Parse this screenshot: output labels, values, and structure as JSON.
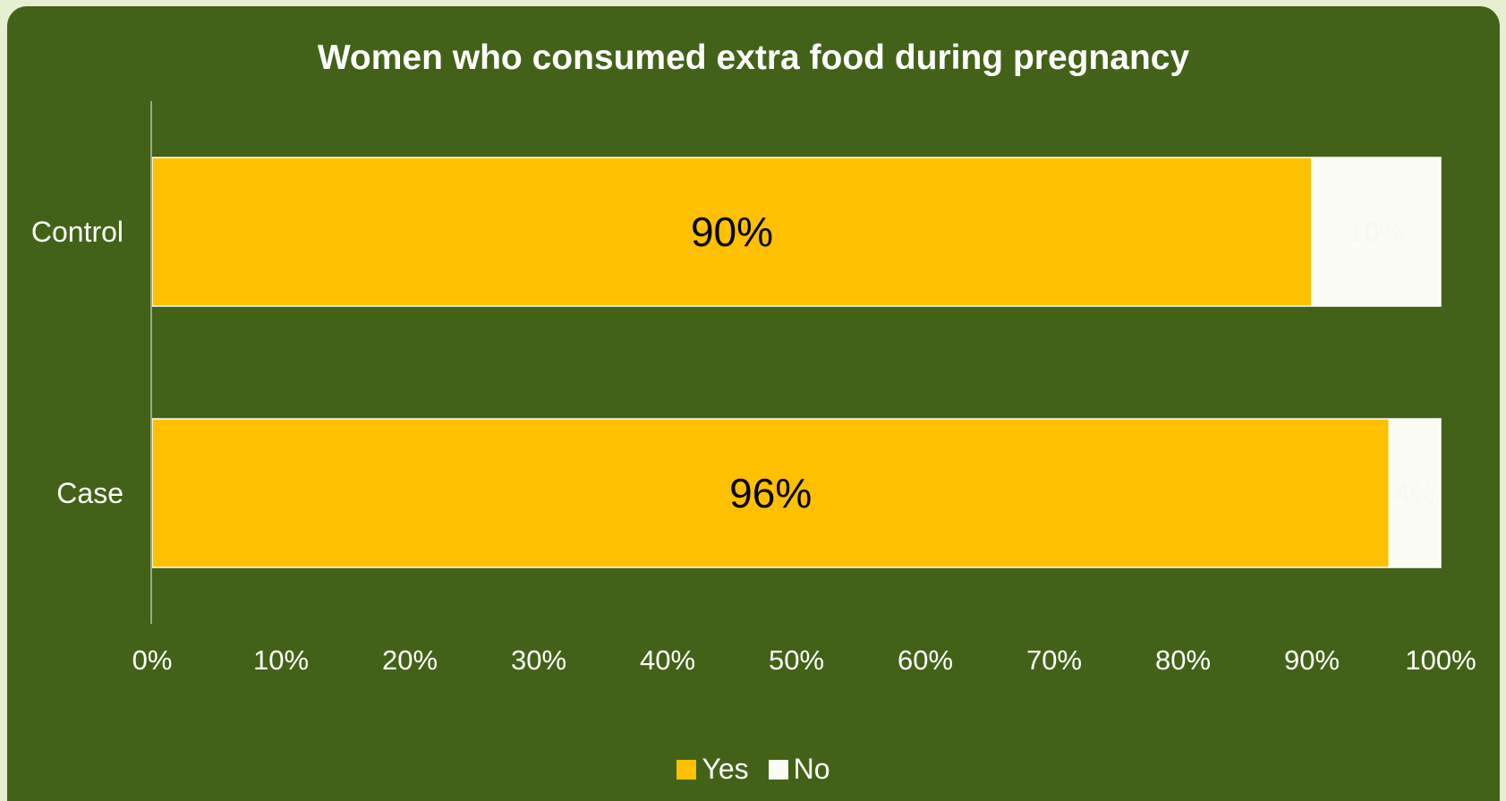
{
  "chart_data": {
    "type": "bar",
    "orientation": "horizontal",
    "stacked": true,
    "percent": true,
    "title": "Women who consumed extra food during pregnancy",
    "categories": [
      "Control",
      "Case"
    ],
    "series": [
      {
        "name": "Yes",
        "values": [
          90,
          96
        ],
        "labels": [
          "90%",
          "96%"
        ],
        "color": "#ffc000"
      },
      {
        "name": "No",
        "values": [
          10,
          4
        ],
        "labels": [
          "10%",
          "4%"
        ],
        "color": "#fbfdf5"
      }
    ],
    "xlim": [
      0,
      100
    ],
    "x_ticks": [
      "0%",
      "10%",
      "20%",
      "30%",
      "40%",
      "50%",
      "60%",
      "70%",
      "80%",
      "90%",
      "100%"
    ],
    "grid": false,
    "legend_position": "bottom",
    "colors": {
      "background": "#426218",
      "text": "#ffffff",
      "axis": "#9aa88a"
    }
  }
}
